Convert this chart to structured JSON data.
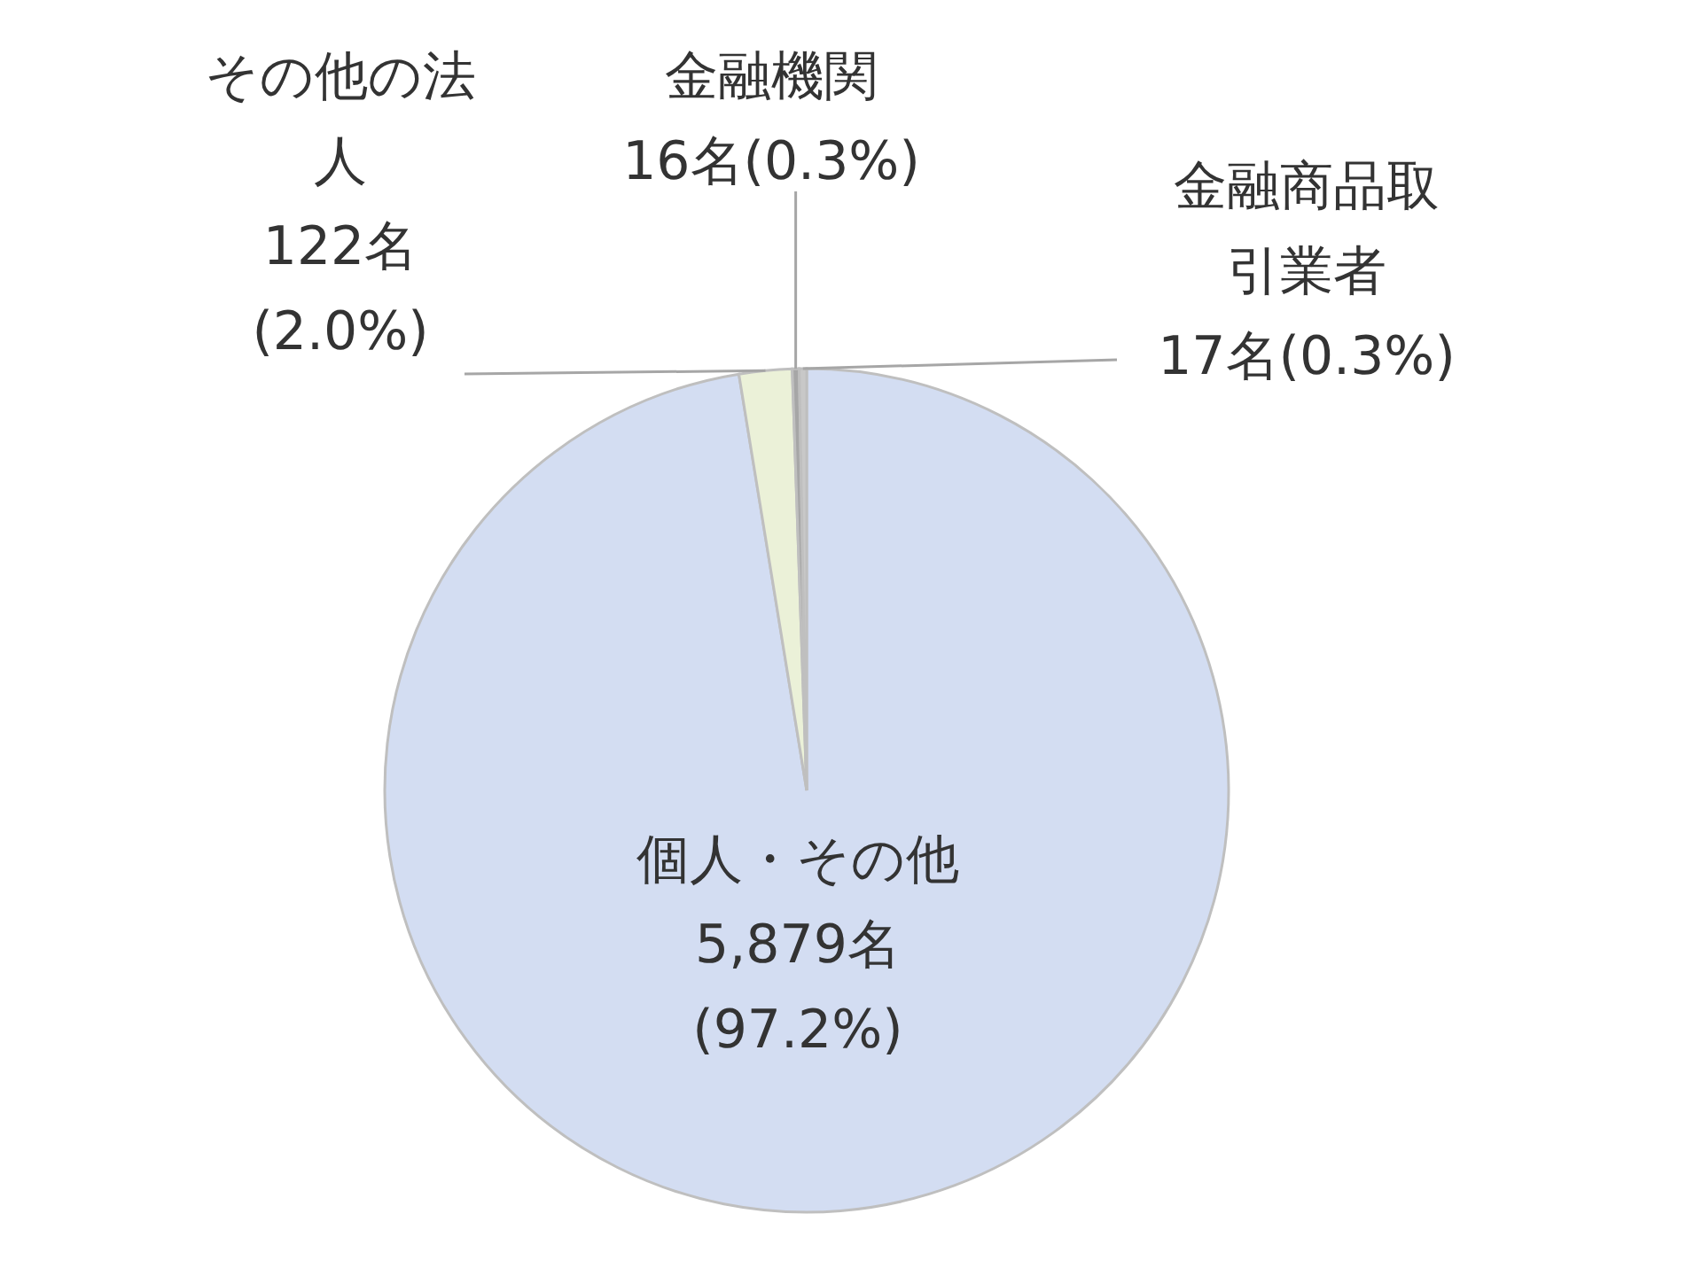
{
  "chart_data": {
    "type": "pie",
    "categories": [
      "個人・その他",
      "その他の法人",
      "金融機関",
      "金融商品取引業者"
    ],
    "values": [
      5879,
      122,
      16,
      17
    ],
    "value_labels": [
      "5,879名(97.2%)",
      "122名(2.0%)",
      "16名(0.3%)",
      "17名(0.3%)"
    ],
    "colors": [
      "#d3ddf2",
      "#ebf1d8",
      "#a6a6a6",
      "#c8c8c8"
    ],
    "legend": false
  }
}
